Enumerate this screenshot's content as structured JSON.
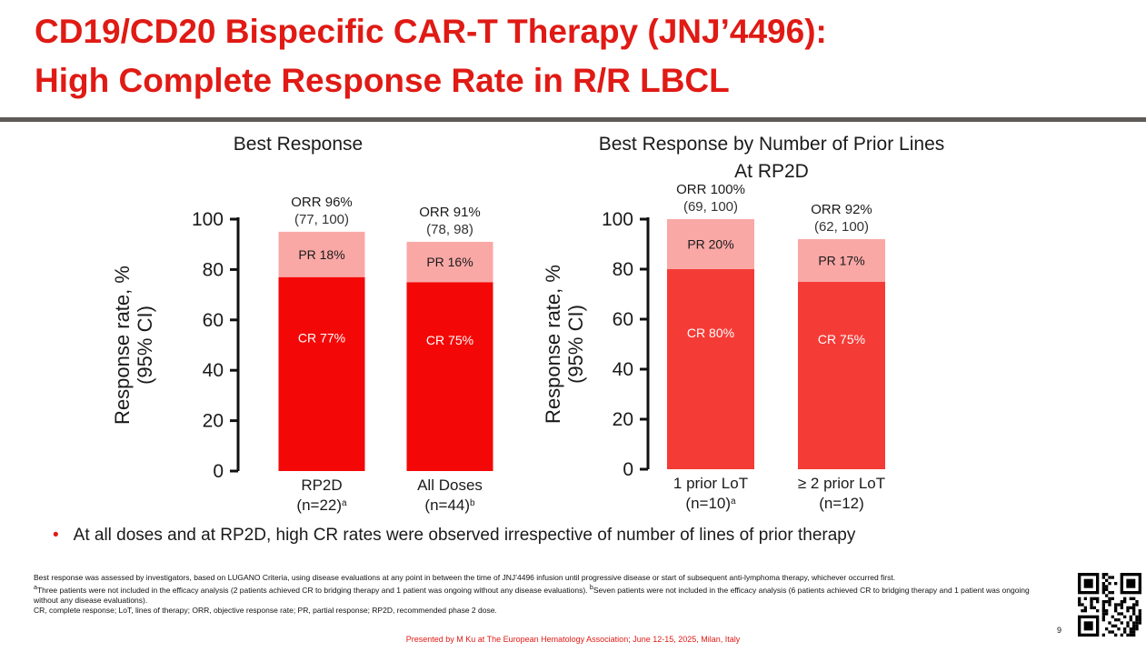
{
  "title": {
    "line1": "CD19/CD20 Bispecific CAR-T Therapy (JNJ’4496):",
    "line2": "High Complete Response Rate in R/R LBCL"
  },
  "colors": {
    "accent": "#e01a14",
    "divider": "#5e5a58",
    "cr_left": "#f40807",
    "cr_right": "#f53b36",
    "pr": "#f9a8a6"
  },
  "chart_data": [
    {
      "type": "bar",
      "stacked": true,
      "title_lines": [
        "Best Response"
      ],
      "ylabel_lines": [
        "Response rate, %",
        "(95% CI)"
      ],
      "xlabel": "",
      "ylim": [
        0,
        100
      ],
      "yticks": [
        0,
        20,
        40,
        60,
        80,
        100
      ],
      "categories": [
        {
          "line1": "RP2D",
          "line2": "(n=22)",
          "sup": "a"
        },
        {
          "line1": "All Doses",
          "line2": "(n=44)",
          "sup": "b"
        }
      ],
      "series": [
        {
          "name": "CR",
          "values": [
            77,
            75
          ],
          "labels": [
            "CR 77%",
            "CR 75%"
          ]
        },
        {
          "name": "PR",
          "values": [
            18,
            16
          ],
          "labels": [
            "PR 18%",
            "PR 16%"
          ]
        }
      ],
      "orr": [
        {
          "label": "ORR 96%",
          "ci": "(77, 100)"
        },
        {
          "label": "ORR 91%",
          "ci": "(78, 98)"
        }
      ]
    },
    {
      "type": "bar",
      "stacked": true,
      "title_lines": [
        "Best Response by Number of Prior Lines",
        "At RP2D"
      ],
      "ylabel_lines": [
        "Response rate, %",
        "(95% CI)"
      ],
      "xlabel": "",
      "ylim": [
        0,
        100
      ],
      "yticks": [
        0,
        20,
        40,
        60,
        80,
        100
      ],
      "categories": [
        {
          "line1": "1 prior LoT",
          "line2": "(n=10)",
          "sup": "a"
        },
        {
          "line1": "≥ 2 prior LoT",
          "line2": "(n=12)",
          "sup": ""
        }
      ],
      "series": [
        {
          "name": "CR",
          "values": [
            80,
            75
          ],
          "labels": [
            "CR 80%",
            "CR 75%"
          ]
        },
        {
          "name": "PR",
          "values": [
            20,
            17
          ],
          "labels": [
            "PR 20%",
            "PR 17%"
          ]
        }
      ],
      "orr": [
        {
          "label": "ORR 100%",
          "ci": "(69, 100)"
        },
        {
          "label": "ORR 92%",
          "ci": "(62, 100)"
        }
      ]
    }
  ],
  "bullet": "At all doses and at RP2D, high CR rates were observed irrespective of number of lines of prior therapy",
  "footnotes": {
    "line1": "Best response was assessed by investigators, based on LUGANO Criteria, using disease evaluations at any point in between the time of JNJ’4496 infusion until progressive disease or start of subsequent anti-lymphoma therapy, whichever occurred first.",
    "line2_sup_a": "a",
    "line2a": "Three patients were not included in the efficacy analysis (2 patients achieved CR to bridging therapy and 1 patient was ongoing without any disease evaluations). ",
    "line2_sup_b": "b",
    "line2b": "Seven patients were not included in the efficacy analysis (6 patients achieved CR to bridging therapy and 1 patient was ongoing without any disease evaluations).",
    "line3": "CR, complete response; LoT, lines of therapy; ORR, objective response rate; PR, partial response; RP2D, recommended phase 2 dose."
  },
  "presented": "Presented by M Ku at The European Hematology Association; June 12-15, 2025, Milan, Italy",
  "page_number": "9",
  "qr_icon": "qr-code-icon"
}
